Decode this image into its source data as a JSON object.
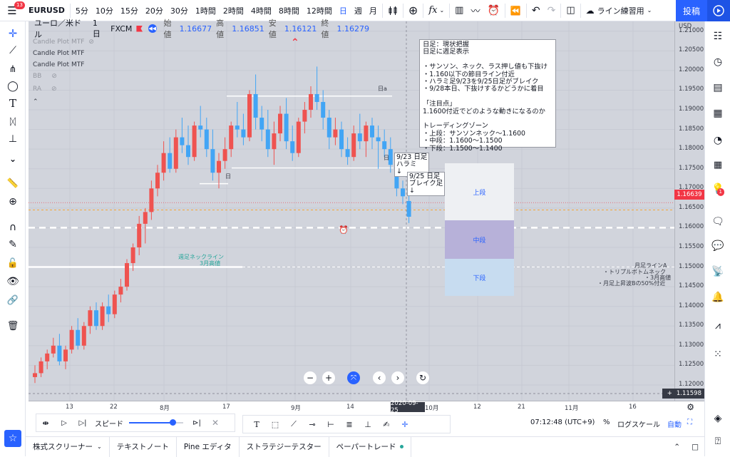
{
  "topbar": {
    "menu_badge": "13",
    "symbol": "EURUSD",
    "timeframes": [
      "5分",
      "10分",
      "15分",
      "20分",
      "30分",
      "1時間",
      "2時間",
      "4時間",
      "8時間",
      "12時間",
      "日",
      "週",
      "月"
    ],
    "active_timeframe": "日",
    "layout_name": "ライン練習用",
    "publish_label": "投稿"
  },
  "legend": {
    "pair": "ユーロ／米ドル",
    "interval": "1日",
    "source": "FXCM",
    "open_label": "始値",
    "open": "1.16677",
    "high_label": "高値",
    "high": "1.16851",
    "low_label": "安値",
    "low": "1.16121",
    "close_label": "終値",
    "close": "1.16279"
  },
  "indicators": [
    {
      "name": "Candle Plot MTF",
      "hidden": true
    },
    {
      "name": "Candle Plot MTF",
      "hidden": false
    },
    {
      "name": "Candle Plot MTF",
      "hidden": false
    },
    {
      "name": "BB",
      "hidden": true
    },
    {
      "name": "RA",
      "hidden": true
    }
  ],
  "note": {
    "text": "日足：現状把握\n日足に週足表示\n\n・サンソン、ネック、ラス押し値も下抜け\n・1.160以下の節目ライン付近\n・ハラミ足9/23を9/25日足がブレイク\n・9/28本日、下抜けするかどうかに着目\n\n「注目点」\n1.1600付近でどのような動きになるのか\n\nトレーディングゾーン\n・上段：サンソンネック～1.1600\n・中段：1.1600～1.1500\n・下段：1.1500～1.1400"
  },
  "callouts": {
    "harami": "9/23 日足\nハラミ\n↓",
    "break": "9/25 日足\nブレイク足\n↓"
  },
  "zones": {
    "upper": "上段",
    "middle": "中段",
    "lower": "下段"
  },
  "annotations": {
    "weekly_neck": "週足ネックライン",
    "march_high_left": "3月高値",
    "monthly_line_a": "月足ラインA",
    "triple_bottom_neck": "・トリプルボトムネック",
    "march_high_right": "・3月高値",
    "monthly_rise_b": "・月足上昇波Bの50%付近",
    "box_day_label_1": "日a",
    "box_day_label_2": "日",
    "box_day_label_3": "日"
  },
  "price_axis": {
    "currency": "USD",
    "ticks": [
      "1.21000",
      "1.20500",
      "1.20000",
      "1.19500",
      "1.19000",
      "1.18500",
      "1.18000",
      "1.17500",
      "1.17000",
      "1.16500",
      "1.16000",
      "1.15500",
      "1.15000",
      "1.14500",
      "1.14000",
      "1.13500",
      "1.13000",
      "1.12500",
      "1.12000"
    ],
    "current_price": "1.16639",
    "crosshair_price": "1.11598"
  },
  "time_axis": {
    "ticks": [
      "13",
      "22",
      "8月",
      "17",
      "9月",
      "14",
      "10月",
      "12",
      "21",
      "11月",
      "16"
    ],
    "crosshair_date": "2020-09-25"
  },
  "replay": {
    "speed_label": "スピード",
    "speed_value": 0.8
  },
  "status": {
    "clock": "07:12:48 (UTC+9)",
    "percent": "%",
    "log_scale": "ログスケール",
    "auto": "自動"
  },
  "bottom_tabs": [
    "株式スクリーナー",
    "テキストノート",
    "Pine エディタ",
    "ストラテジーテスター",
    "ペーパートレード"
  ],
  "colors": {
    "up": "#ef5350",
    "down": "#42a5f5",
    "accent": "#2962ff",
    "chart_bg": "#d1d4dc",
    "zone_upper": "#eef0f3",
    "zone_middle": "#b7b1d9",
    "zone_lower": "#c7dcf0"
  },
  "chart_data": {
    "type": "candlestick",
    "ylim": [
      1.116,
      1.2125
    ],
    "candles": [
      [
        1.122,
        1.125,
        1.1205,
        1.123
      ],
      [
        1.123,
        1.127,
        1.122,
        1.126
      ],
      [
        1.126,
        1.129,
        1.124,
        1.128
      ],
      [
        1.128,
        1.132,
        1.127,
        1.13
      ],
      [
        1.13,
        1.133,
        1.125,
        1.126
      ],
      [
        1.126,
        1.13,
        1.124,
        1.129
      ],
      [
        1.129,
        1.135,
        1.128,
        1.134
      ],
      [
        1.134,
        1.137,
        1.129,
        1.13
      ],
      [
        1.13,
        1.136,
        1.129,
        1.135
      ],
      [
        1.135,
        1.14,
        1.133,
        1.139
      ],
      [
        1.139,
        1.141,
        1.134,
        1.135
      ],
      [
        1.135,
        1.141,
        1.134,
        1.14
      ],
      [
        1.14,
        1.143,
        1.136,
        1.138
      ],
      [
        1.138,
        1.144,
        1.137,
        1.143
      ],
      [
        1.143,
        1.147,
        1.141,
        1.145
      ],
      [
        1.145,
        1.152,
        1.144,
        1.151
      ],
      [
        1.151,
        1.156,
        1.149,
        1.155
      ],
      [
        1.155,
        1.163,
        1.153,
        1.161
      ],
      [
        1.161,
        1.165,
        1.156,
        1.164
      ],
      [
        1.164,
        1.172,
        1.162,
        1.17
      ],
      [
        1.17,
        1.176,
        1.168,
        1.174
      ],
      [
        1.174,
        1.182,
        1.172,
        1.179
      ],
      [
        1.179,
        1.183,
        1.174,
        1.175
      ],
      [
        1.175,
        1.185,
        1.174,
        1.183
      ],
      [
        1.183,
        1.188,
        1.179,
        1.181
      ],
      [
        1.181,
        1.186,
        1.176,
        1.178
      ],
      [
        1.178,
        1.187,
        1.177,
        1.186
      ],
      [
        1.186,
        1.191,
        1.183,
        1.185
      ],
      [
        1.185,
        1.188,
        1.178,
        1.18
      ],
      [
        1.18,
        1.185,
        1.172,
        1.174
      ],
      [
        1.174,
        1.179,
        1.17,
        1.177
      ],
      [
        1.177,
        1.183,
        1.175,
        1.18
      ],
      [
        1.18,
        1.187,
        1.178,
        1.186
      ],
      [
        1.186,
        1.192,
        1.183,
        1.185
      ],
      [
        1.185,
        1.189,
        1.181,
        1.183
      ],
      [
        1.183,
        1.195,
        1.182,
        1.194
      ],
      [
        1.194,
        1.199,
        1.185,
        1.188
      ],
      [
        1.188,
        1.191,
        1.182,
        1.185
      ],
      [
        1.185,
        1.19,
        1.178,
        1.18
      ],
      [
        1.18,
        1.187,
        1.176,
        1.184
      ],
      [
        1.184,
        1.191,
        1.182,
        1.189
      ],
      [
        1.189,
        1.193,
        1.18,
        1.182
      ],
      [
        1.182,
        1.186,
        1.177,
        1.179
      ],
      [
        1.179,
        1.188,
        1.178,
        1.187
      ],
      [
        1.187,
        1.192,
        1.184,
        1.19
      ],
      [
        1.19,
        1.196,
        1.188,
        1.194
      ],
      [
        1.194,
        1.201,
        1.19,
        1.192
      ],
      [
        1.192,
        1.195,
        1.185,
        1.188
      ],
      [
        1.188,
        1.19,
        1.18,
        1.183
      ],
      [
        1.183,
        1.188,
        1.181,
        1.185
      ],
      [
        1.185,
        1.187,
        1.178,
        1.18
      ],
      [
        1.18,
        1.183,
        1.176,
        1.178
      ],
      [
        1.178,
        1.186,
        1.177,
        1.184
      ],
      [
        1.184,
        1.189,
        1.18,
        1.182
      ],
      [
        1.182,
        1.187,
        1.178,
        1.186
      ],
      [
        1.186,
        1.188,
        1.18,
        1.183
      ],
      [
        1.183,
        1.186,
        1.175,
        1.182
      ],
      [
        1.182,
        1.185,
        1.178,
        1.18
      ],
      [
        1.18,
        1.183,
        1.174,
        1.176
      ],
      [
        1.176,
        1.179,
        1.168,
        1.17
      ],
      [
        1.17,
        1.172,
        1.166,
        1.168
      ],
      [
        1.1668,
        1.1685,
        1.1612,
        1.1628
      ]
    ]
  }
}
